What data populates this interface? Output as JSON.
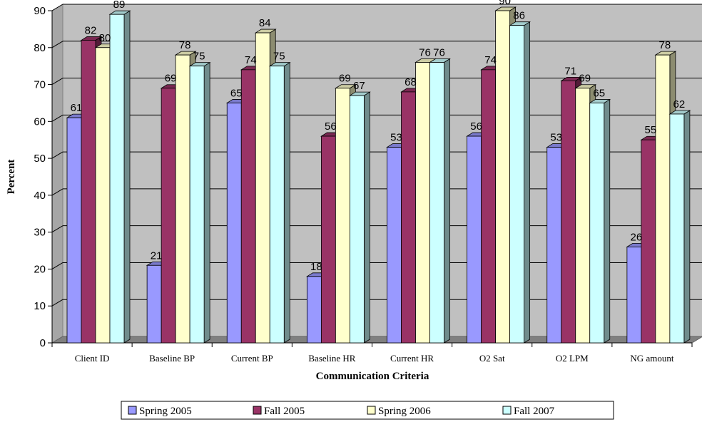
{
  "chart_data": {
    "type": "bar",
    "title": "",
    "xlabel": "Communication Criteria",
    "ylabel": "Percent",
    "ylim": [
      0,
      90
    ],
    "yticks": [
      0,
      10,
      20,
      30,
      40,
      50,
      60,
      70,
      80,
      90
    ],
    "grid": true,
    "legend_position": "bottom",
    "categories": [
      "Client ID",
      "Baseline BP",
      "Current BP",
      "Baseline HR",
      "Current HR",
      "O2 Sat",
      "O2 LPM",
      "NG amount"
    ],
    "series": [
      {
        "name": "Spring 2005",
        "color": "#9999ff",
        "values": [
          61,
          21,
          65,
          18,
          53,
          56,
          53,
          26
        ]
      },
      {
        "name": "Fall 2005",
        "color": "#993366",
        "values": [
          82,
          69,
          74,
          56,
          68,
          74,
          71,
          55
        ]
      },
      {
        "name": "Spring 2006",
        "color": "#ffffcc",
        "values": [
          80,
          78,
          84,
          69,
          76,
          90,
          69,
          78
        ]
      },
      {
        "name": "Fall 2007",
        "color": "#ccffff",
        "values": [
          89,
          75,
          75,
          67,
          76,
          86,
          65,
          62
        ]
      }
    ]
  }
}
